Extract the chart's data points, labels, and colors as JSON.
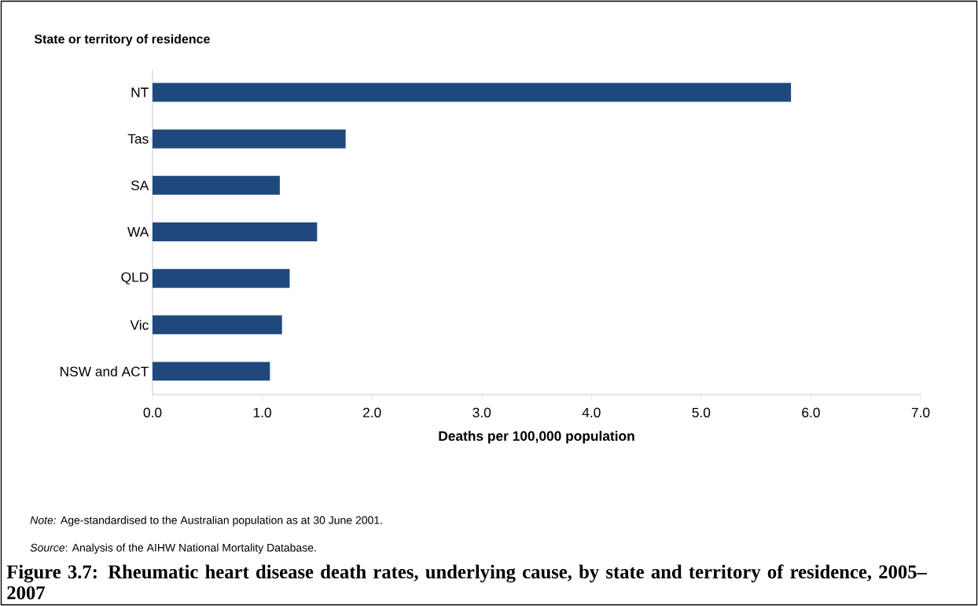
{
  "chart_data": {
    "type": "bar",
    "orientation": "horizontal",
    "title": "Figure 3.7: Rheumatic heart disease death rates, underlying cause, by state and territory of residence, 2005–2007",
    "xlabel": "Deaths per 100,000 population",
    "ylabel": "State or territory of residence",
    "categories": [
      "NT",
      "Tas",
      "SA",
      "WA",
      "QLD",
      "Vic",
      "NSW and ACT"
    ],
    "values": [
      5.82,
      1.76,
      1.16,
      1.5,
      1.25,
      1.18,
      1.07
    ],
    "color": "#1f497d",
    "xlim": [
      0,
      7
    ],
    "xticks": [
      {
        "value": 0,
        "label": "0.0"
      },
      {
        "value": 1,
        "label": "1.0"
      },
      {
        "value": 2,
        "label": "2.0"
      },
      {
        "value": 3,
        "label": "3.0"
      },
      {
        "value": 4,
        "label": "4.0"
      },
      {
        "value": 5,
        "label": "5.0"
      },
      {
        "value": 6,
        "label": "6.0"
      },
      {
        "value": 7,
        "label": "7.0"
      }
    ],
    "annotations": [
      "*Note:* Age-standardised to the Australian population as at 30 June 2001.",
      "*Source*: Analysis of the AIHW National Mortality Database."
    ],
    "grid": false
  }
}
